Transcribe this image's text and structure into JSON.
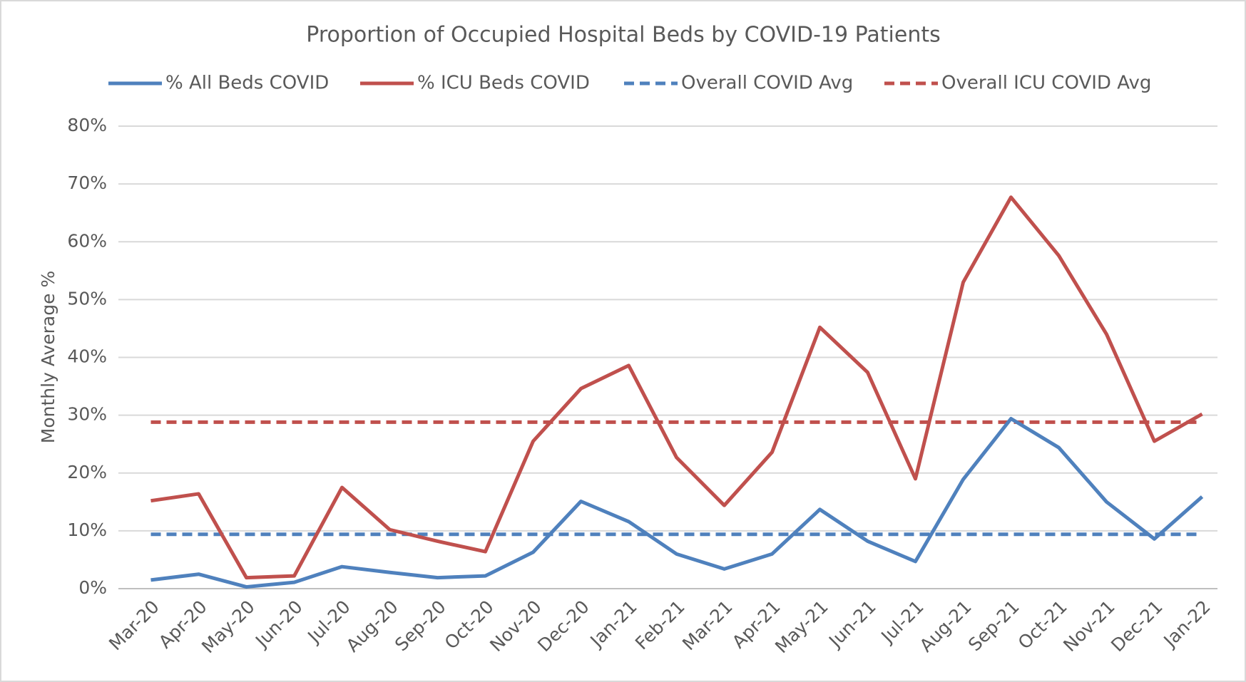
{
  "chart_data": {
    "type": "line",
    "title": "Proportion of Occupied Hospital Beds by COVID-19 Patients",
    "y_label": "Monthly Average %",
    "categories": [
      "Mar-20",
      "Apr-20",
      "May-20",
      "Jun-20",
      "Jul-20",
      "Aug-20",
      "Sep-20",
      "Oct-20",
      "Nov-20",
      "Dec-20",
      "Jan-21",
      "Feb-21",
      "Mar-21",
      "Apr-21",
      "May-21",
      "Jun-21",
      "Jul-21",
      "Aug-21",
      "Sep-21",
      "Oct-21",
      "Nov-21",
      "Dec-21",
      "Jan-22"
    ],
    "series": [
      {
        "name": "% All Beds COVID",
        "color": "#4f81bd",
        "dashed": false,
        "values": [
          1.5,
          2.5,
          0.3,
          1.1,
          3.8,
          2.8,
          1.9,
          2.2,
          6.3,
          15.1,
          11.6,
          6.0,
          3.4,
          6.0,
          13.7,
          8.2,
          4.7,
          18.9,
          29.4,
          24.4,
          15.0,
          8.6,
          15.9
        ]
      },
      {
        "name": "% ICU Beds COVID",
        "color": "#c0504d",
        "dashed": false,
        "values": [
          15.2,
          16.4,
          1.9,
          2.2,
          17.5,
          10.2,
          8.2,
          6.4,
          25.5,
          34.6,
          38.6,
          22.7,
          14.4,
          23.6,
          45.2,
          37.4,
          19.0,
          53.0,
          67.7,
          57.6,
          44.0,
          25.5,
          30.2
        ]
      },
      {
        "name": "Overall COVID Avg",
        "color": "#4f81bd",
        "dashed": true,
        "values": [
          9.4,
          9.4,
          9.4,
          9.4,
          9.4,
          9.4,
          9.4,
          9.4,
          9.4,
          9.4,
          9.4,
          9.4,
          9.4,
          9.4,
          9.4,
          9.4,
          9.4,
          9.4,
          9.4,
          9.4,
          9.4,
          9.4,
          9.4
        ]
      },
      {
        "name": "Overall ICU COVID Avg",
        "color": "#c0504d",
        "dashed": true,
        "values": [
          28.8,
          28.8,
          28.8,
          28.8,
          28.8,
          28.8,
          28.8,
          28.8,
          28.8,
          28.8,
          28.8,
          28.8,
          28.8,
          28.8,
          28.8,
          28.8,
          28.8,
          28.8,
          28.8,
          28.8,
          28.8,
          28.8,
          28.8
        ]
      }
    ],
    "ylim": [
      0,
      80
    ],
    "yticks": [
      {
        "value": 0,
        "label": "0%"
      },
      {
        "value": 10,
        "label": "10%"
      },
      {
        "value": 20,
        "label": "20%"
      },
      {
        "value": 30,
        "label": "30%"
      },
      {
        "value": 40,
        "label": "40%"
      },
      {
        "value": 50,
        "label": "50%"
      },
      {
        "value": 60,
        "label": "60%"
      },
      {
        "value": 70,
        "label": "70%"
      },
      {
        "value": 80,
        "label": "80%"
      }
    ],
    "grid": true,
    "legend": "top"
  }
}
